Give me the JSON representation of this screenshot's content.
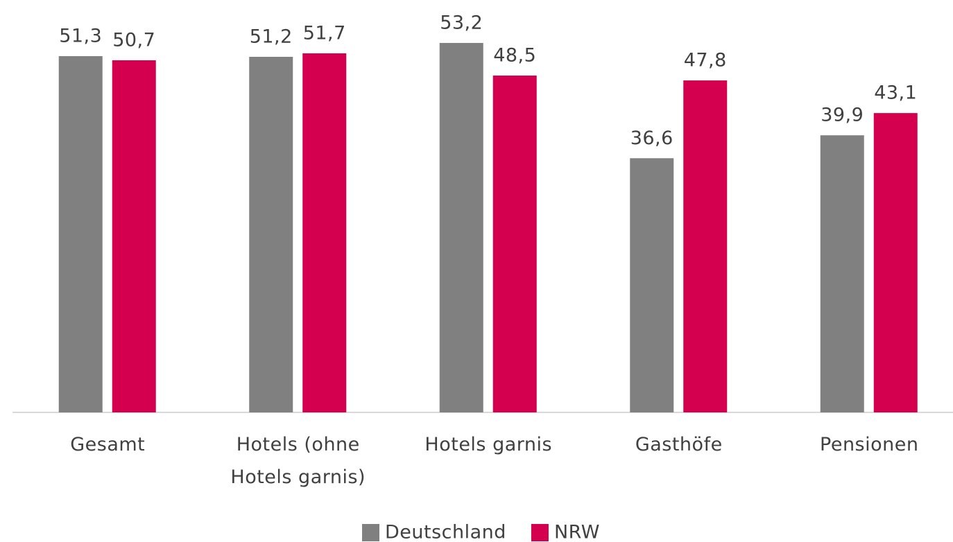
{
  "chart_data": {
    "type": "bar",
    "categories": [
      "Gesamt",
      "Hotels (ohne\nHotels garnis)",
      "Hotels garnis",
      "Gasthöfe",
      "Pensionen"
    ],
    "series": [
      {
        "name": "Deutschland",
        "color": "#808080",
        "values": [
          51.3,
          51.2,
          53.2,
          36.6,
          39.9
        ],
        "value_labels": [
          "51,3",
          "51,2",
          "53,2",
          "36,6",
          "39,9"
        ]
      },
      {
        "name": "NRW",
        "color": "#d4004f",
        "values": [
          50.7,
          51.7,
          48.5,
          47.8,
          43.1
        ],
        "value_labels": [
          "50,7",
          "51,7",
          "48,5",
          "47,8",
          "43,1"
        ]
      }
    ],
    "legend": "bottom"
  }
}
